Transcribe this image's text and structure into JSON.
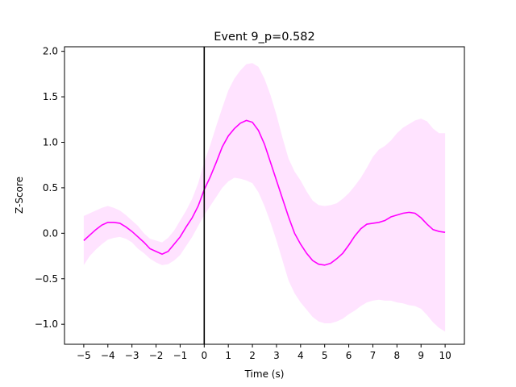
{
  "chart_data": {
    "type": "line",
    "title": "Event 9_p=0.582",
    "xlabel": "Time (s)",
    "ylabel": "Z-Score",
    "xlim": [
      -5.8,
      10.8
    ],
    "ylim": [
      -1.22,
      2.05
    ],
    "xticks": [
      -5,
      -4,
      -3,
      -2,
      -1,
      0,
      1,
      2,
      3,
      4,
      5,
      6,
      7,
      8,
      9,
      10
    ],
    "yticks": [
      -1.0,
      -0.5,
      0.0,
      0.5,
      1.0,
      1.5,
      2.0
    ],
    "ytick_labels": [
      "−1.0",
      "−0.5",
      "0.0",
      "0.5",
      "1.0",
      "1.5",
      "2.0"
    ],
    "event_line_x": 0,
    "grid": false,
    "colors": {
      "line": "#ff00ff",
      "band": "#ff00ff",
      "event_line": "#000000"
    },
    "series": [
      {
        "x": [
          -5,
          -4.75,
          -4.5,
          -4.25,
          -4,
          -3.75,
          -3.5,
          -3.25,
          -3,
          -2.75,
          -2.5,
          -2.25,
          -2,
          -1.75,
          -1.5,
          -1.25,
          -1,
          -0.75,
          -0.5,
          -0.25,
          0,
          0.25,
          0.5,
          0.75,
          1,
          1.25,
          1.5,
          1.75,
          2,
          2.25,
          2.5,
          2.75,
          3,
          3.25,
          3.5,
          3.75,
          4,
          4.25,
          4.5,
          4.75,
          5,
          5.25,
          5.5,
          5.75,
          6,
          6.25,
          6.5,
          6.75,
          7,
          7.25,
          7.5,
          7.75,
          8,
          8.25,
          8.5,
          8.75,
          9,
          9.25,
          9.5,
          9.75,
          10
        ],
        "y": [
          -0.08,
          -0.02,
          0.04,
          0.09,
          0.12,
          0.12,
          0.11,
          0.07,
          0.02,
          -0.04,
          -0.1,
          -0.17,
          -0.2,
          -0.23,
          -0.2,
          -0.12,
          -0.04,
          0.07,
          0.17,
          0.3,
          0.48,
          0.62,
          0.78,
          0.95,
          1.07,
          1.15,
          1.21,
          1.24,
          1.22,
          1.13,
          0.98,
          0.78,
          0.58,
          0.38,
          0.18,
          0.0,
          -0.12,
          -0.22,
          -0.3,
          -0.34,
          -0.35,
          -0.33,
          -0.28,
          -0.22,
          -0.13,
          -0.03,
          0.05,
          0.1,
          0.11,
          0.12,
          0.14,
          0.18,
          0.2,
          0.22,
          0.23,
          0.22,
          0.17,
          0.1,
          0.04,
          0.02,
          0.01
        ],
        "upper": [
          0.19,
          0.22,
          0.25,
          0.28,
          0.3,
          0.28,
          0.25,
          0.2,
          0.14,
          0.08,
          0.0,
          -0.06,
          -0.08,
          -0.1,
          -0.05,
          0.03,
          0.14,
          0.25,
          0.38,
          0.55,
          0.78,
          0.97,
          1.18,
          1.38,
          1.57,
          1.7,
          1.79,
          1.86,
          1.87,
          1.83,
          1.7,
          1.52,
          1.3,
          1.05,
          0.82,
          0.68,
          0.58,
          0.46,
          0.36,
          0.31,
          0.3,
          0.31,
          0.33,
          0.38,
          0.44,
          0.52,
          0.61,
          0.72,
          0.84,
          0.92,
          0.96,
          1.02,
          1.1,
          1.16,
          1.2,
          1.24,
          1.26,
          1.23,
          1.15,
          1.1,
          1.1
        ],
        "lower": [
          -0.35,
          -0.25,
          -0.18,
          -0.12,
          -0.07,
          -0.05,
          -0.04,
          -0.06,
          -0.1,
          -0.17,
          -0.22,
          -0.28,
          -0.32,
          -0.35,
          -0.34,
          -0.3,
          -0.24,
          -0.14,
          -0.04,
          0.08,
          0.2,
          0.3,
          0.4,
          0.5,
          0.57,
          0.61,
          0.6,
          0.58,
          0.55,
          0.45,
          0.3,
          0.12,
          -0.08,
          -0.3,
          -0.52,
          -0.66,
          -0.76,
          -0.84,
          -0.92,
          -0.97,
          -0.99,
          -0.99,
          -0.97,
          -0.94,
          -0.89,
          -0.85,
          -0.8,
          -0.76,
          -0.74,
          -0.73,
          -0.74,
          -0.74,
          -0.76,
          -0.77,
          -0.79,
          -0.8,
          -0.83,
          -0.9,
          -0.98,
          -1.04,
          -1.08
        ]
      }
    ]
  }
}
